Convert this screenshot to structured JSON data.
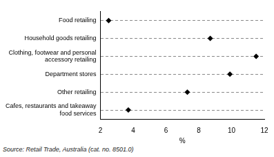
{
  "chart_data": {
    "type": "scatter",
    "orientation": "horizontal",
    "categories": [
      "Food retailing",
      "Household goods retailing",
      [
        "Clothing, footwear and personal",
        "accessory retailing"
      ],
      "Department stores",
      "Other retailing",
      [
        "Cafes, restaurants and takeaway",
        "food services"
      ]
    ],
    "values": [
      2.5,
      8.7,
      11.5,
      9.9,
      7.3,
      3.7
    ],
    "color": "#000000",
    "marker": "diamond",
    "x_label": "%",
    "xlim": [
      2,
      12
    ],
    "xticks": [
      2,
      4,
      6,
      8,
      10,
      12
    ],
    "grid": true,
    "source": "Source: Retail Trade, Australia (cat. no. 8501.0)"
  }
}
